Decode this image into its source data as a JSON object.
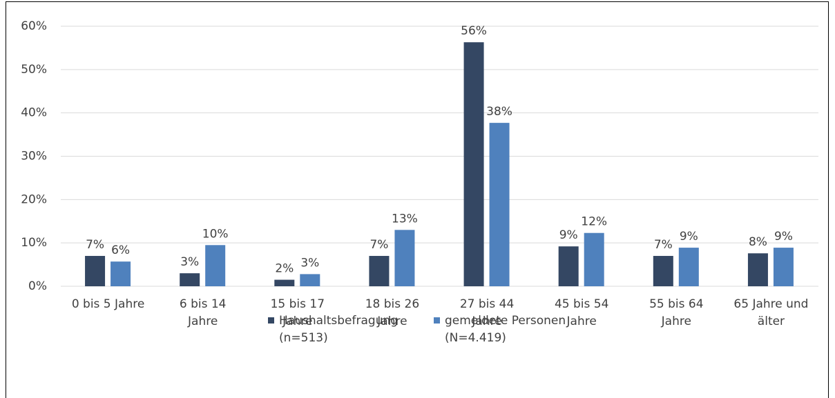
{
  "chart_data": {
    "type": "bar",
    "categories": [
      "0 bis 5 Jahre",
      "6 bis 14\nJahre",
      "15 bis 17\nJahre",
      "18 bis 26\nJahre",
      "27 bis 44\nJahre",
      "45 bis 54\nJahre",
      "55 bis 64\nJahre",
      "65 Jahre und\nälter"
    ],
    "series": [
      {
        "name": "Haushaltsbefragung\n(n=513)",
        "color": "#344763",
        "values": [
          7,
          3,
          1.5,
          7,
          56.3,
          9.2,
          7,
          7.6
        ],
        "value_labels": [
          "7%",
          "3%",
          "2%",
          "7%",
          "56%",
          "9%",
          "7%",
          "8%"
        ]
      },
      {
        "name": "gemeldete Personen\n(N=4.419)",
        "color": "#4f81bd",
        "values": [
          5.7,
          9.5,
          2.8,
          13,
          37.7,
          12.3,
          8.9,
          8.9
        ],
        "value_labels": [
          "6%",
          "10%",
          "3%",
          "13%",
          "38%",
          "12%",
          "9%",
          "9%"
        ]
      }
    ],
    "ylim": [
      0,
      60
    ],
    "yticks": [
      {
        "value": 0,
        "label": "0%"
      },
      {
        "value": 10,
        "label": "10%"
      },
      {
        "value": 20,
        "label": "20%"
      },
      {
        "value": 30,
        "label": "30%"
      },
      {
        "value": 40,
        "label": "40%"
      },
      {
        "value": 50,
        "label": "50%"
      },
      {
        "value": 60,
        "label": "60%"
      }
    ],
    "grid": true,
    "legend": "bottom"
  }
}
